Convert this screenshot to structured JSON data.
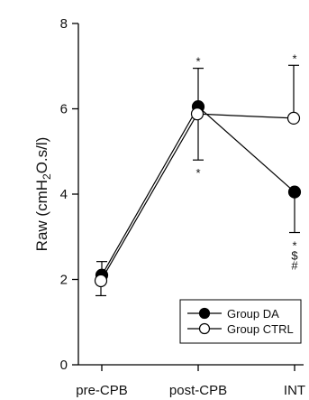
{
  "chart_data": {
    "type": "line",
    "categories": [
      "pre-CPB",
      "post-CPB",
      "INT"
    ],
    "ylabel": "Raw (cmH₂O.s/l)",
    "ylabel_parts": {
      "pre": "Raw (cmH",
      "sub": "2",
      "post": "O.s/l)"
    },
    "ylim": [
      0,
      8
    ],
    "yticks": [
      0,
      2,
      4,
      6,
      8
    ],
    "grid": false,
    "legend_position": "bottom-right",
    "series": [
      {
        "name": "Group DA",
        "marker": "filled-circle",
        "color": "#000000",
        "values": [
          2.1,
          6.05,
          4.05
        ],
        "error_upper": [
          2.42,
          6.95,
          4.05
        ],
        "error_lower": [
          2.1,
          4.8,
          3.1
        ]
      },
      {
        "name": "Group CTRL",
        "marker": "open-circle",
        "color": "#000000",
        "values": [
          1.97,
          5.88,
          5.78
        ],
        "error_upper": [
          1.97,
          5.88,
          7.02
        ],
        "error_lower": [
          1.62,
          5.88,
          5.78
        ]
      }
    ],
    "annotations": [
      {
        "category": "post-CPB",
        "position": "above",
        "text": "*"
      },
      {
        "category": "post-CPB",
        "position": "below",
        "text": "*"
      },
      {
        "category": "INT",
        "position": "above",
        "text": "*"
      },
      {
        "category": "INT",
        "position": "below",
        "lines": [
          "*",
          "$",
          "#"
        ]
      }
    ]
  }
}
